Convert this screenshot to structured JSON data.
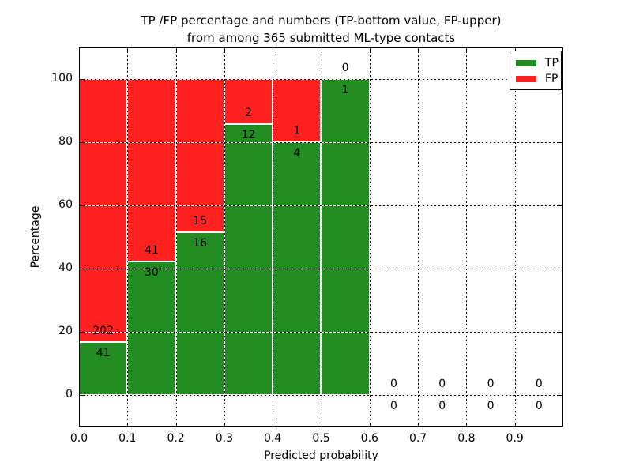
{
  "title": {
    "line1": "TP /FP percentage and numbers (TP-bottom value, FP-upper)",
    "line2": "from among 365 submitted ML-type contacts"
  },
  "axes": {
    "xlabel": "Predicted probability",
    "ylabel": "Percentage"
  },
  "legend": {
    "position": "upper right",
    "items": [
      {
        "label": "TP",
        "color": "#228B22"
      },
      {
        "label": "FP",
        "color": "#FF2020"
      }
    ]
  },
  "chart_data": {
    "type": "bar",
    "stacked": true,
    "title": "TP /FP percentage and numbers (TP-bottom value, FP-upper) from among 365 submitted ML-type contacts",
    "xlabel": "Predicted probability",
    "ylabel": "Percentage",
    "xlim": [
      0.0,
      1.0
    ],
    "ylim": [
      -10,
      110
    ],
    "grid": true,
    "grid_style": "dashed-black-on-white",
    "legend_position": "upper right",
    "total_contacts": 365,
    "bin_width": 0.1,
    "x_ticks": [
      "0.0",
      "0.1",
      "0.2",
      "0.3",
      "0.4",
      "0.5",
      "0.6",
      "0.7",
      "0.8",
      "0.9"
    ],
    "y_ticks": [
      0,
      20,
      40,
      60,
      80,
      100
    ],
    "colors": {
      "tp": "#228B22",
      "fp": "#FF2020"
    },
    "series": [
      {
        "name": "TP",
        "values": [
          41,
          30,
          16,
          12,
          4,
          1,
          0,
          0,
          0,
          0
        ]
      },
      {
        "name": "FP",
        "values": [
          202,
          41,
          15,
          2,
          1,
          0,
          0,
          0,
          0,
          0
        ]
      }
    ],
    "bins": [
      {
        "x0": 0.0,
        "x1": 0.1,
        "tp": 41,
        "fp": 202,
        "tp_pct": 16.87,
        "fp_pct": 83.13
      },
      {
        "x0": 0.1,
        "x1": 0.2,
        "tp": 30,
        "fp": 41,
        "tp_pct": 42.25,
        "fp_pct": 57.75
      },
      {
        "x0": 0.2,
        "x1": 0.3,
        "tp": 16,
        "fp": 15,
        "tp_pct": 51.61,
        "fp_pct": 48.39
      },
      {
        "x0": 0.3,
        "x1": 0.4,
        "tp": 12,
        "fp": 2,
        "tp_pct": 85.71,
        "fp_pct": 14.29
      },
      {
        "x0": 0.4,
        "x1": 0.5,
        "tp": 4,
        "fp": 1,
        "tp_pct": 80.0,
        "fp_pct": 20.0
      },
      {
        "x0": 0.5,
        "x1": 0.6,
        "tp": 1,
        "fp": 0,
        "tp_pct": 100.0,
        "fp_pct": 0.0
      },
      {
        "x0": 0.6,
        "x1": 0.7,
        "tp": 0,
        "fp": 0,
        "tp_pct": 0,
        "fp_pct": 0
      },
      {
        "x0": 0.7,
        "x1": 0.8,
        "tp": 0,
        "fp": 0,
        "tp_pct": 0,
        "fp_pct": 0
      },
      {
        "x0": 0.8,
        "x1": 0.9,
        "tp": 0,
        "fp": 0,
        "tp_pct": 0,
        "fp_pct": 0
      },
      {
        "x0": 0.9,
        "x1": 1.0,
        "tp": 0,
        "fp": 0,
        "tp_pct": 0,
        "fp_pct": 0
      }
    ]
  }
}
